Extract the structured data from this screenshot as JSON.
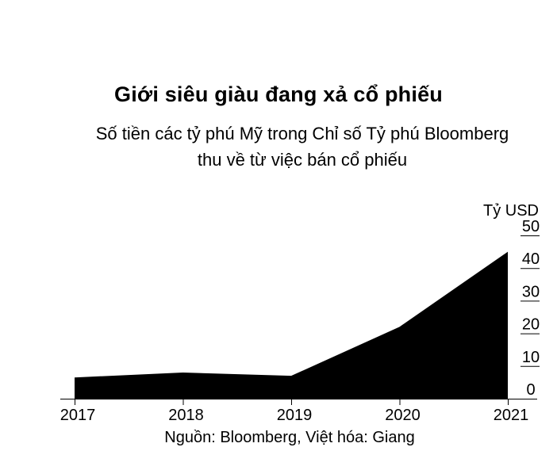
{
  "chart_data": {
    "type": "area",
    "title": "Giới siêu giàu đang xả cổ phiếu",
    "subtitle_lines": [
      "Số tiền các tỷ phú Mỹ trong Chỉ số Tỷ phú Bloomberg",
      "thu về từ việc bán cổ phiếu"
    ],
    "unit_label": "Tỷ USD",
    "x": [
      "2017",
      "2018",
      "2019",
      "2020",
      "2021"
    ],
    "series": [
      {
        "values": [
          6.5,
          8,
          7,
          22,
          45
        ]
      }
    ],
    "y_ticks": [
      0,
      10,
      20,
      30,
      40,
      50
    ],
    "ylim": [
      0,
      50
    ],
    "y_axis_position": "right",
    "grid": false,
    "fill_color": "#000000",
    "source": "Nguồn: Bloomberg, Việt hóa: Giang"
  }
}
